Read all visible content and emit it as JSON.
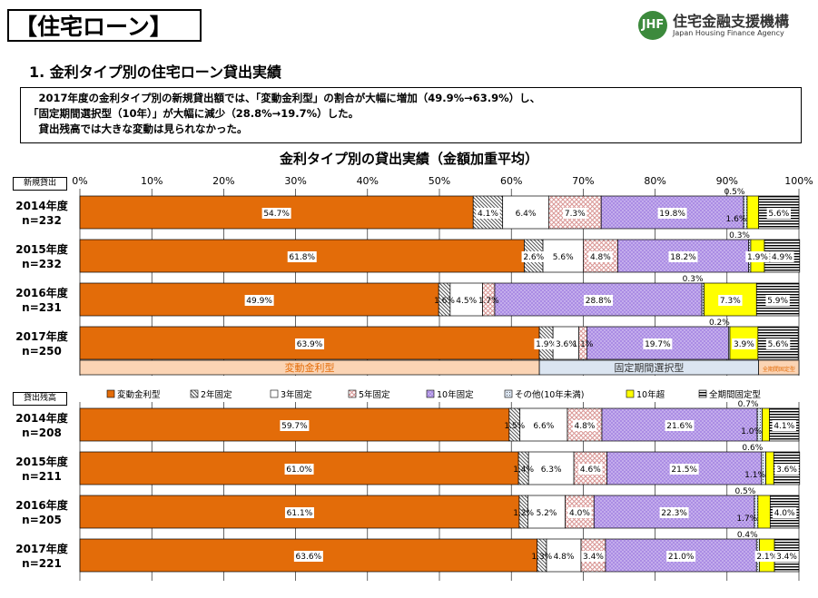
{
  "header": {
    "title": "【住宅ローン】",
    "logo_name": "住宅金融支援機構",
    "logo_sub": "Japan Housing Finance Agency",
    "subtitle": "1. 金利タイプ別の住宅ローン貸出実績"
  },
  "summary": {
    "line1": "　2017年度の金利タイプ別の新規貸出額では、「変動金利型」の割合が大幅に増加（49.9%→63.9%）し、",
    "line2": "「固定期間選択型（10年）」が大幅に減少（28.8%→19.7%）した。",
    "line3": "　貸出残高では大きな変動は見られなかった。"
  },
  "colors": {
    "variable": "#e36c09",
    "five_year": "#d99694",
    "ten_year": "#b7a0e6",
    "over_ten": "#ffff00",
    "variable_band": "#fbd4b4",
    "fixed_band": "#dbe5f1"
  },
  "chart_data": {
    "type": "bar",
    "orientation": "horizontal",
    "stacked": true,
    "title": "金利タイプ別の貸出実績（金額加重平均）",
    "xlim": [
      0,
      100
    ],
    "x_ticks": [
      "0%",
      "10%",
      "20%",
      "30%",
      "40%",
      "50%",
      "60%",
      "70%",
      "80%",
      "90%",
      "100%"
    ],
    "legend": [
      "変動金利型",
      "2年固定",
      "3年固定",
      "5年固定",
      "10年固定",
      "その他(10年未満)",
      "10年超",
      "全期間固定型"
    ],
    "sections": [
      {
        "label": "新規貸出",
        "rows": [
          {
            "year": "2014年度",
            "n": "n=232",
            "values": [
              54.7,
              4.1,
              6.4,
              7.3,
              19.8,
              0.5,
              1.6,
              5.6
            ]
          },
          {
            "year": "2015年度",
            "n": "n=232",
            "values": [
              61.8,
              2.6,
              5.6,
              4.8,
              18.2,
              0.3,
              1.9,
              4.9
            ]
          },
          {
            "year": "2016年度",
            "n": "n=231",
            "values": [
              49.9,
              1.6,
              4.5,
              1.7,
              28.8,
              0.3,
              7.3,
              5.9
            ]
          },
          {
            "year": "2017年度",
            "n": "n=250",
            "values": [
              63.9,
              1.9,
              3.6,
              1.1,
              19.7,
              0.2,
              3.9,
              5.6
            ]
          }
        ],
        "bands": [
          {
            "label": "変動金利型",
            "from": 0,
            "to": 63.9
          },
          {
            "label": "固定期間選択型",
            "from": 63.9,
            "to": 94.4
          },
          {
            "label": "全期間固定型",
            "from": 94.4,
            "to": 100
          }
        ]
      },
      {
        "label": "貸出残高",
        "rows": [
          {
            "year": "2014年度",
            "n": "n=208",
            "values": [
              59.7,
              1.5,
              6.6,
              4.8,
              21.6,
              0.7,
              1.0,
              4.1
            ]
          },
          {
            "year": "2015年度",
            "n": "n=211",
            "values": [
              61.0,
              1.4,
              6.3,
              4.6,
              21.5,
              0.6,
              1.1,
              3.6
            ]
          },
          {
            "year": "2016年度",
            "n": "n=205",
            "values": [
              61.1,
              1.2,
              5.2,
              4.0,
              22.3,
              0.5,
              1.7,
              4.0
            ]
          },
          {
            "year": "2017年度",
            "n": "n=221",
            "values": [
              63.6,
              1.3,
              4.8,
              3.4,
              21.0,
              0.4,
              2.1,
              3.4
            ]
          }
        ]
      }
    ]
  }
}
